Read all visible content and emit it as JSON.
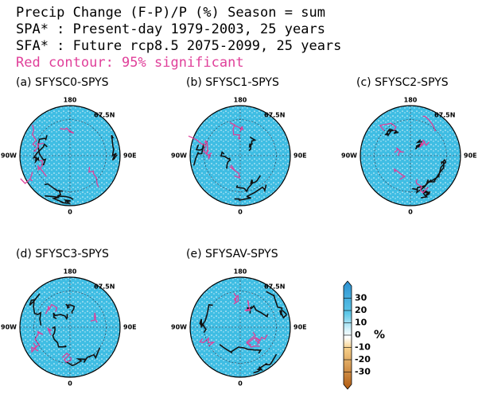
{
  "header": {
    "lines": [
      "Precip Change (F-P)/P (%) Season = sum",
      "SPA* : Present-day    1979-2003, 25 years",
      "SFA* : Future rcp8.5   2075-2099, 25 years",
      "Red contour: 95% significant"
    ]
  },
  "panels": [
    {
      "title": "(a) SFYSC0-SPYS"
    },
    {
      "title": "(b) SFYSC1-SPYS"
    },
    {
      "title": "(c) SFYSC2-SPYS"
    },
    {
      "title": "(d) SFYSC3-SPYS"
    },
    {
      "title": "(e) SFYSAV-SPYS"
    }
  ],
  "map_labels": {
    "top": "180",
    "lat": "67.5N",
    "left": "90W",
    "right": "90E",
    "bottom": "0"
  },
  "colorbar": {
    "lim": [
      -40,
      40
    ],
    "ticks": [
      30,
      20,
      10,
      0,
      -10,
      -20,
      -30
    ],
    "unit": "%"
  }
}
